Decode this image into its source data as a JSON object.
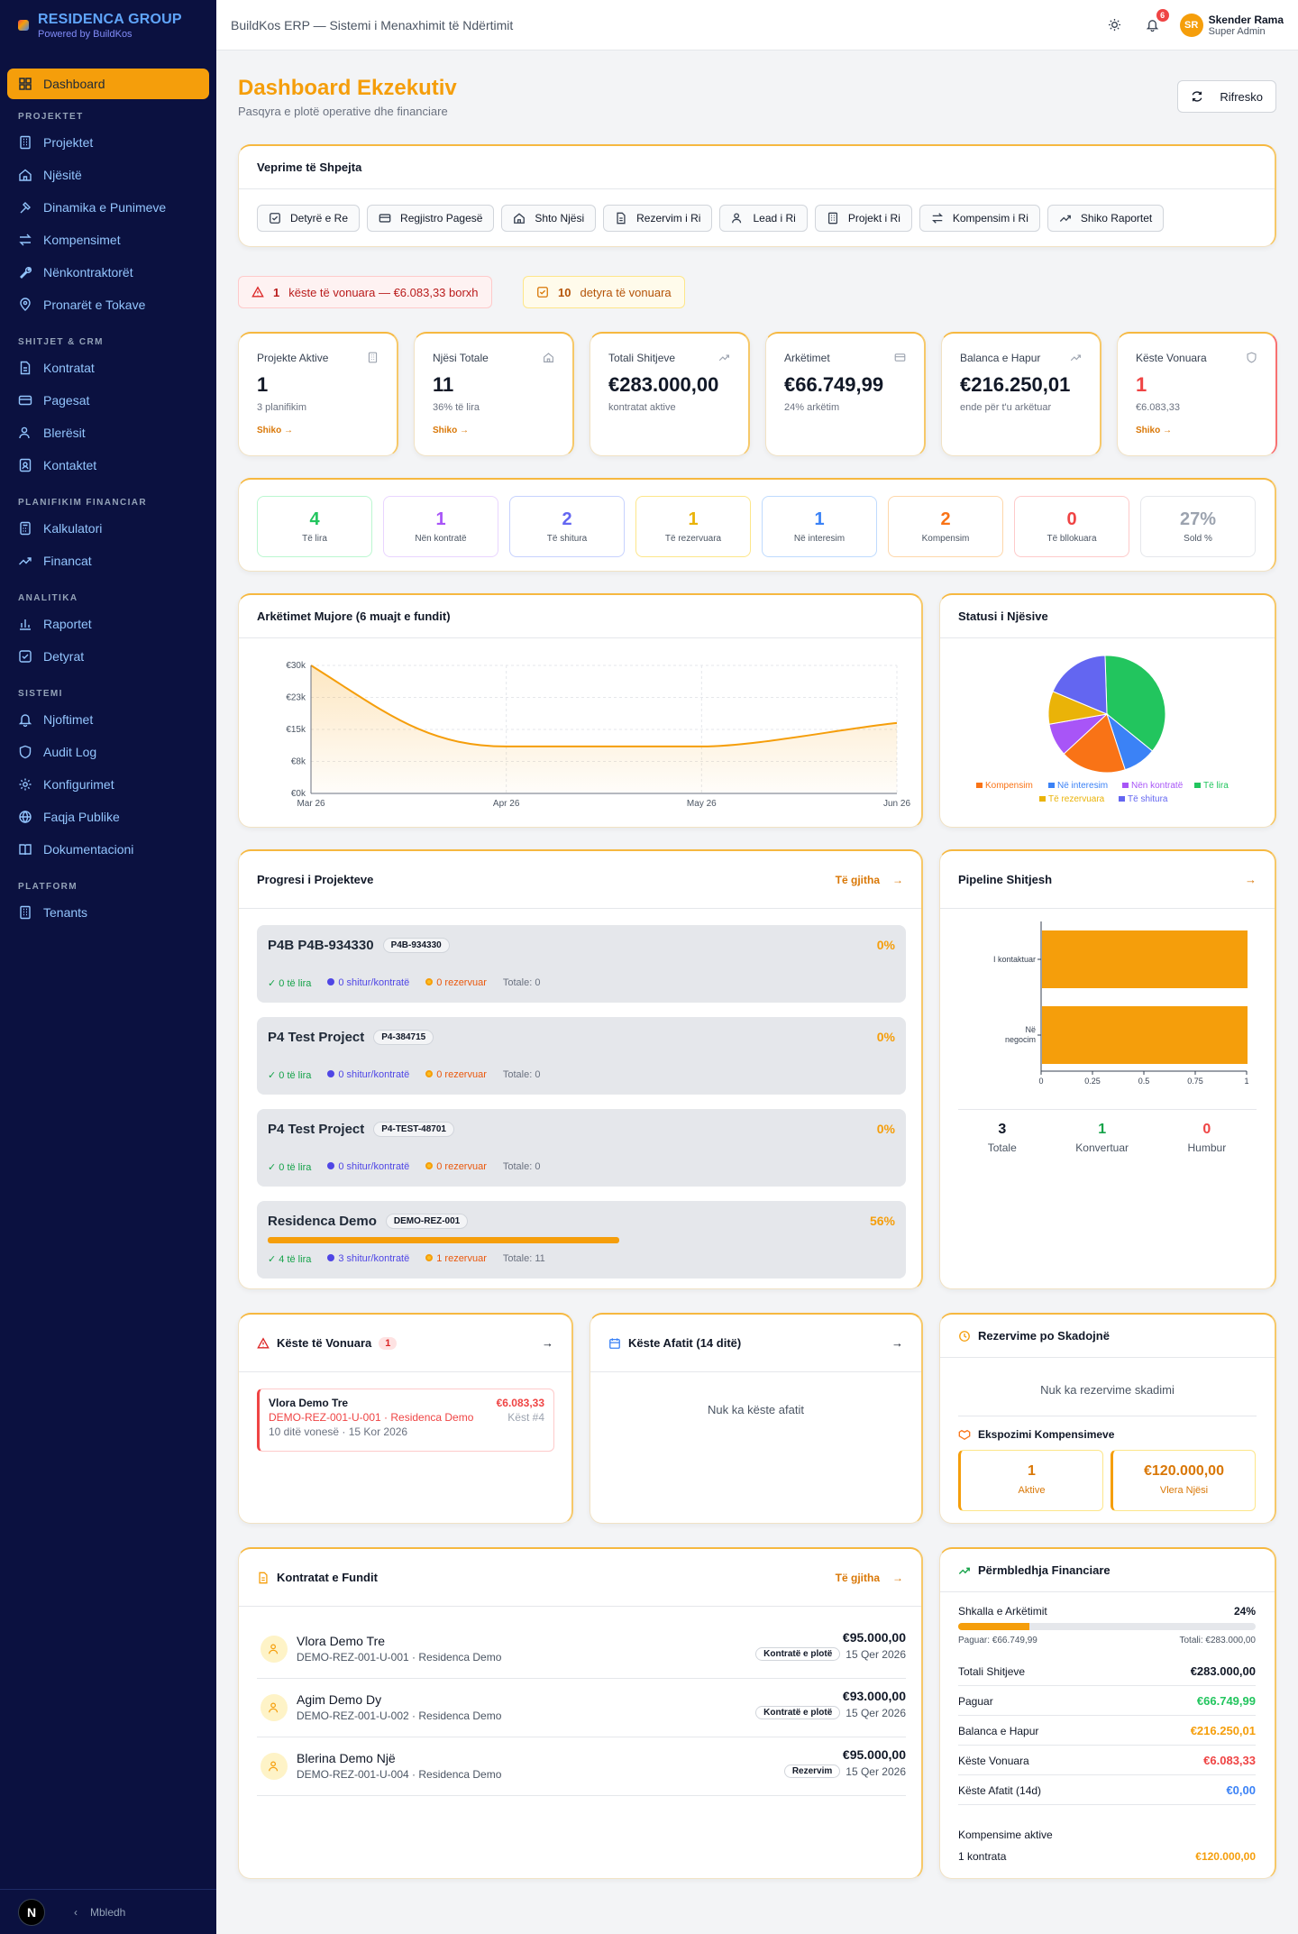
{
  "brand": {
    "title": "RESIDENCA GROUP",
    "sub": "Powered by BuildKos"
  },
  "sidebar": {
    "active": "Dashboard",
    "sections": [
      {
        "title": "PROJEKTET",
        "items": [
          "Projektet",
          "Njësitë",
          "Dinamika e Punimeve",
          "Kompensimet",
          "Nënkontraktorët",
          "Pronarët e Tokave"
        ]
      },
      {
        "title": "SHITJET & CRM",
        "items": [
          "Kontratat",
          "Pagesat",
          "Blerësit",
          "Kontaktet"
        ]
      },
      {
        "title": "PLANIFIKIM FINANCIAR",
        "items": [
          "Kalkulatori",
          "Financat"
        ]
      },
      {
        "title": "ANALITIKA",
        "items": [
          "Raportet",
          "Detyrat"
        ]
      },
      {
        "title": "SISTEMI",
        "items": [
          "Njoftimet",
          "Audit Log",
          "Konfigurimet",
          "Faqja Publike",
          "Dokumentacioni"
        ]
      },
      {
        "title": "PLATFORM",
        "items": [
          "Tenants"
        ]
      }
    ],
    "collapse": "Mbledh",
    "badge": "N"
  },
  "header": {
    "title": "BuildKos ERP — Sistemi i Menaxhimit të Ndërtimit",
    "notif_count": "6",
    "user_initials": "SR",
    "user_name": "Skender Rama",
    "user_role": "Super Admin"
  },
  "page": {
    "title": "Dashboard Ekzekutiv",
    "subtitle": "Pasqyra e plotë operative dhe financiare",
    "refresh": "Rifresko"
  },
  "quick": {
    "title": "Veprime të Shpejta",
    "actions": [
      {
        "label": "Detyrë e Re",
        "icon": "checkbox-icon"
      },
      {
        "label": "Regjistro Pagesë",
        "icon": "card-icon"
      },
      {
        "label": "Shto Njësi",
        "icon": "home-icon"
      },
      {
        "label": "Rezervim i Ri",
        "icon": "document-icon"
      },
      {
        "label": "Lead i Ri",
        "icon": "users-icon"
      },
      {
        "label": "Projekt i Ri",
        "icon": "building-icon"
      },
      {
        "label": "Kompensim i Ri",
        "icon": "handshake-icon"
      },
      {
        "label": "Shiko Raportet",
        "icon": "activity-icon"
      }
    ]
  },
  "alerts": {
    "overdue_count": "1",
    "overdue_text": "këste të vonuara — €6.083,33 borxh",
    "tasks_count": "10",
    "tasks_text": "detyra të vonuara"
  },
  "kpis": [
    {
      "label": "Projekte Aktive",
      "value": "1",
      "sub": "3 planifikim",
      "link": "Shiko →",
      "color": "#111827"
    },
    {
      "label": "Njësi Totale",
      "value": "11",
      "sub": "36% të lira",
      "link": "Shiko →",
      "color": "#111827"
    },
    {
      "label": "Totali Shitjeve",
      "value": "€283.000,00",
      "sub": "kontratat aktive",
      "link": "",
      "color": "#111827"
    },
    {
      "label": "Arkëtimet",
      "value": "€66.749,99",
      "sub": "24% arkëtim",
      "link": "",
      "color": "#111827"
    },
    {
      "label": "Balanca e Hapur",
      "value": "€216.250,01",
      "sub": "ende për t'u arkëtuar",
      "link": "",
      "color": "#111827"
    },
    {
      "label": "Këste Vonuara",
      "value": "1",
      "sub": "€6.083,33",
      "link": "Shiko →",
      "color": "#ef4444"
    }
  ],
  "unit_stats": [
    {
      "value": "4",
      "label": "Të lira",
      "color": "#22c55e",
      "border": "#bbf7d0"
    },
    {
      "value": "1",
      "label": "Nën kontratë",
      "color": "#a855f7",
      "border": "#e9d5ff"
    },
    {
      "value": "2",
      "label": "Të shitura",
      "color": "#6366f1",
      "border": "#c7d2fe"
    },
    {
      "value": "1",
      "label": "Të rezervuara",
      "color": "#eab308",
      "border": "#fde68a"
    },
    {
      "value": "1",
      "label": "Në interesim",
      "color": "#3b82f6",
      "border": "#bfdbfe"
    },
    {
      "value": "2",
      "label": "Kompensim",
      "color": "#f97316",
      "border": "#fed7aa"
    },
    {
      "value": "0",
      "label": "Të bllokuara",
      "color": "#ef4444",
      "border": "#fecaca"
    },
    {
      "value": "27%",
      "label": "Sold %",
      "color": "#9ca3af",
      "border": "#e5e7eb"
    }
  ],
  "revenue_chart": {
    "title": "Arkëtimet Mujore (6 muajt e fundit)"
  },
  "chart_data": [
    {
      "type": "area",
      "title": "Arkëtimet Mujore (6 muajt e fundit)",
      "x": [
        "Mar 26",
        "Apr 26",
        "May 26",
        "Jun 26"
      ],
      "y_ticks": [
        "€0k",
        "€8k",
        "€15k",
        "€23k",
        "€30k"
      ],
      "ylim": [
        0,
        30000
      ],
      "values": [
        30000,
        11000,
        11000,
        16500
      ],
      "color": "#f59e0b",
      "grid": true
    },
    {
      "type": "pie",
      "title": "Statusi i Njësive",
      "series": [
        {
          "name": "Të lira",
          "value": 4,
          "color": "#22c55e"
        },
        {
          "name": "Në interesim",
          "value": 1,
          "color": "#3b82f6"
        },
        {
          "name": "Kompensim",
          "value": 2,
          "color": "#f97316"
        },
        {
          "name": "Nën kontratë",
          "value": 1,
          "color": "#a855f7"
        },
        {
          "name": "Të rezervuara",
          "value": 1,
          "color": "#eab308"
        },
        {
          "name": "Të shitura",
          "value": 2,
          "color": "#6366f1"
        }
      ],
      "legend_order": [
        "Kompensim",
        "Në interesim",
        "Nën kontratë",
        "Të lira",
        "Të rezervuara",
        "Të shitura"
      ],
      "legend": "bottom"
    },
    {
      "type": "bar",
      "orientation": "horizontal",
      "title": "Pipeline Shitjesh",
      "categories": [
        "I kontaktuar",
        "Në negocim"
      ],
      "values": [
        1,
        1
      ],
      "xlim": [
        0,
        1
      ],
      "x_ticks": [
        "0",
        "0.25",
        "0.5",
        "0.75",
        "1"
      ],
      "color": "#f59e0b"
    }
  ],
  "status_chart": {
    "title": "Statusi i Njësive"
  },
  "progress": {
    "title": "Progresi i Projekteve",
    "all": "Të gjitha",
    "projects": [
      {
        "name": "P4B P4B-934330",
        "code": "P4B-934330",
        "pct": "0%",
        "progress": 0,
        "free": "✓ 0 të lira",
        "sold": "0 shitur/kontratë",
        "reserved": "0 rezervuar",
        "total": "Totale: 0"
      },
      {
        "name": "P4 Test Project",
        "code": "P4-384715",
        "pct": "0%",
        "progress": 0,
        "free": "✓ 0 të lira",
        "sold": "0 shitur/kontratë",
        "reserved": "0 rezervuar",
        "total": "Totale: 0"
      },
      {
        "name": "P4 Test Project",
        "code": "P4-TEST-48701",
        "pct": "0%",
        "progress": 0,
        "free": "✓ 0 të lira",
        "sold": "0 shitur/kontratë",
        "reserved": "0 rezervuar",
        "total": "Totale: 0"
      },
      {
        "name": "Residenca Demo",
        "code": "DEMO-REZ-001",
        "pct": "56%",
        "progress": 0.56,
        "free": "✓ 4 të lira",
        "sold": "3 shitur/kontratë",
        "reserved": "1 rezervuar",
        "total": "Totale: 11"
      }
    ]
  },
  "pipeline": {
    "title": "Pipeline Shitjesh",
    "cat1": "I kontaktuar",
    "cat2a": "Në",
    "cat2b": "negocim",
    "stats": [
      {
        "value": "3",
        "label": "Totale",
        "color": "#111827"
      },
      {
        "value": "1",
        "label": "Konvertuar",
        "color": "#16a34a"
      },
      {
        "value": "0",
        "label": "Humbur",
        "color": "#ef4444"
      }
    ]
  },
  "overdue": {
    "title": "Këste të Vonuara",
    "count": "1",
    "name": "Vlora Demo Tre",
    "amount": "€6.083,33",
    "ref": "DEMO-REZ-001-U-001 · Residenca Demo",
    "inst": "Këst #4",
    "late": "10 ditë vonesë · 15 Kor 2026"
  },
  "due": {
    "title": "Këste Afatit (14 ditë)",
    "empty": "Nuk ka këste afatit"
  },
  "reservations": {
    "title": "Rezervime po Skadojnë",
    "empty": "Nuk ka rezervime skadimi",
    "comp_title": "Ekspozimi Kompensimeve",
    "active_v": "1",
    "active_l": "Aktive",
    "value_v": "€120.000,00",
    "value_l": "Vlera Njësi"
  },
  "contracts": {
    "title": "Kontratat e Fundit",
    "all": "Të gjitha",
    "rows": [
      {
        "name": "Vlora Demo Tre",
        "ref": "DEMO-REZ-001-U-001 · Residenca Demo",
        "amount": "€95.000,00",
        "status": "Kontratë e plotë",
        "date": "15 Qer 2026"
      },
      {
        "name": "Agim Demo Dy",
        "ref": "DEMO-REZ-001-U-002 · Residenca Demo",
        "amount": "€93.000,00",
        "status": "Kontratë e plotë",
        "date": "15 Qer 2026"
      },
      {
        "name": "Blerina Demo Një",
        "ref": "DEMO-REZ-001-U-004 · Residenca Demo",
        "amount": "€95.000,00",
        "status": "Rezervim",
        "date": "15 Qer 2026"
      }
    ]
  },
  "finance": {
    "title": "Përmbledhja Financiare",
    "scale_label": "Shkalla e Arkëtimit",
    "scale_pct": "24%",
    "scale": 0.24,
    "paid_l": "Paguar: €66.749,99",
    "total_l": "Totali: €283.000,00",
    "rows": [
      {
        "label": "Totali Shitjeve",
        "value": "€283.000,00",
        "color": "#111827"
      },
      {
        "label": "Paguar",
        "value": "€66.749,99",
        "color": "#22c55e"
      },
      {
        "label": "Balanca e Hapur",
        "value": "€216.250,01",
        "color": "#f59e0b"
      },
      {
        "label": "Këste Vonuara",
        "value": "€6.083,33",
        "color": "#ef4444"
      },
      {
        "label": "Këste Afatit (14d)",
        "value": "€0,00",
        "color": "#3b82f6"
      }
    ],
    "comp_label": "Kompensime aktive",
    "comp_count": "1 kontrata",
    "comp_value": "€120.000,00"
  }
}
